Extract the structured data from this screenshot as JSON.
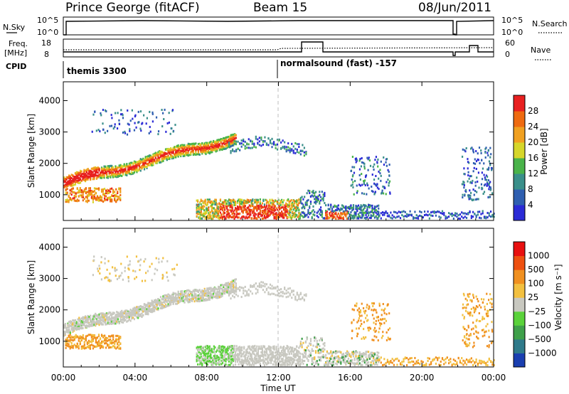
{
  "header": {
    "station": "Prince George (fitACF)",
    "beam": "Beam 15",
    "date": "08/Jun/2011"
  },
  "top_panels": {
    "nsky_label": "N.Sky",
    "nsky_ticks": [
      "10^5",
      "10^0"
    ],
    "nsearch_label": "N.Search",
    "nsearch_ticks": [
      "10^5",
      "10^0"
    ],
    "freq_label_1": "Freq.",
    "freq_label_2": "[MHz]",
    "freq_ticks": [
      "18",
      "8"
    ],
    "nave_label": "Nave",
    "nave_ticks": [
      "60",
      "0"
    ],
    "cpid_label": "CPID",
    "cpid_segments": [
      {
        "name": "themis 3300",
        "start_hour": 0
      },
      {
        "name": "normalsound (fast) -157",
        "start_hour": 12
      }
    ]
  },
  "chart_data": [
    {
      "type": "heatmap",
      "title": "",
      "xlabel": "",
      "ylabel": "Slant Range [km]",
      "xlim": [
        0,
        24
      ],
      "ylim": [
        180,
        4600
      ],
      "x_tick_labels": [
        "00:00",
        "04:00",
        "08:00",
        "12:00",
        "16:00",
        "20:00",
        "00:00"
      ],
      "y_ticks": [
        1000,
        2000,
        3000,
        4000
      ],
      "colorbar": {
        "label": "Power [dB]",
        "ticks": [
          4,
          8,
          12,
          16,
          20,
          24,
          28
        ],
        "colors": [
          "#2b2bd6",
          "#2f5fb0",
          "#3a8f8a",
          "#4ab34a",
          "#d6d62a",
          "#f0a020",
          "#ee6a10",
          "#e82020"
        ]
      }
    },
    {
      "type": "heatmap",
      "title": "",
      "xlabel": "Time UT",
      "ylabel": "Slant Range [km]",
      "xlim": [
        0,
        24
      ],
      "ylim": [
        180,
        4600
      ],
      "x_tick_labels": [
        "00:00",
        "04:00",
        "08:00",
        "12:00",
        "16:00",
        "20:00",
        "00:00"
      ],
      "y_ticks": [
        1000,
        2000,
        3000,
        4000
      ],
      "colorbar": {
        "label": "Velocity [m s⁻¹]",
        "ticks": [
          "1000",
          "500",
          "100",
          "25",
          "−25",
          "−100",
          "−500",
          "−1000"
        ],
        "colors": [
          "#1a3fb0",
          "#2f7a8a",
          "#3fa04a",
          "#5ad23a",
          "#c8c8c0",
          "#f2c040",
          "#f09020",
          "#ee5010",
          "#e81010"
        ]
      }
    }
  ]
}
